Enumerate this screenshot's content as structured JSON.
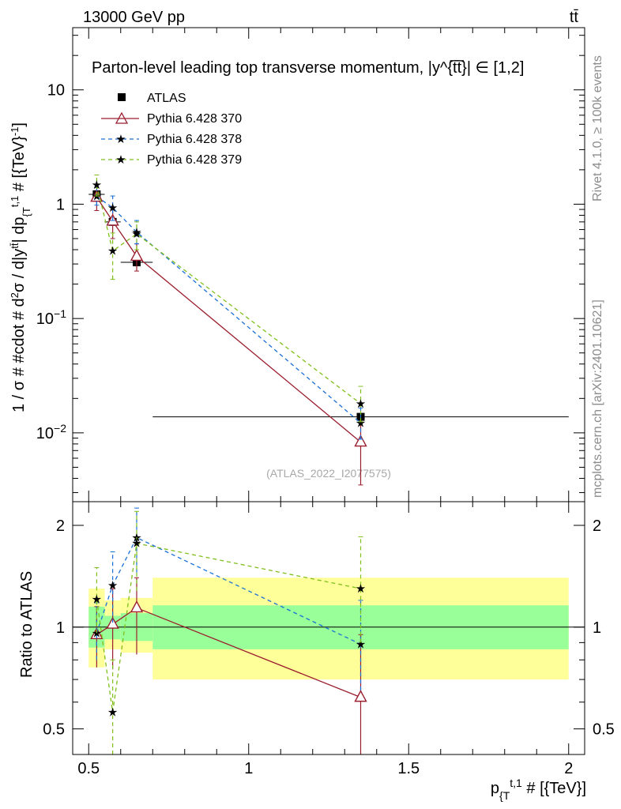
{
  "header": {
    "left": "13000 GeV pp",
    "right": "tt̄"
  },
  "side_labels": {
    "rivet": "Rivet 4.1.0, ≥ 100k events",
    "mcplots": "mcplots.cern.ch [arXiv:2401.10621]"
  },
  "chart_data": [
    {
      "name": "main",
      "type": "scatter",
      "title": "Parton-level leading top transverse momentum, |y^{tt̄}| ∈ [1,2]",
      "title_display": "Parton-level leading top transverse momentum, |y^{t̅t̅}| ∈ [1,2]",
      "watermark": "(ATLAS_2022_I2077575)",
      "ylabel": "1 / σ # #cdot # d²σ / d|y^{tt̄}| dp_{T}^{t,1} # [{TeV}⁻¹]",
      "ylabel_parts": {
        "a": "1 / σ # #cdot # d",
        "sup2": "2",
        "b": "σ / d|y",
        "supy": "tt̄",
        "c": "| dp",
        "subT": "{T",
        "supT": "t,1",
        "d": " # [{TeV}",
        "supinv": "-1",
        "e": "]"
      },
      "xlim": [
        0.45,
        2.05
      ],
      "ylim": [
        0.0025,
        35
      ],
      "yscale": "log",
      "y_ticks": [
        {
          "value": 0.01,
          "base": "10",
          "exp": "−2"
        },
        {
          "value": 0.1,
          "base": "10",
          "exp": "−1"
        },
        {
          "value": 1,
          "label": "1"
        },
        {
          "value": 10,
          "label": "10"
        }
      ],
      "legend": [
        "ATLAS",
        "Pythia 6.428 370",
        "Pythia 6.428 378",
        "Pythia 6.428 379"
      ],
      "series": [
        {
          "name": "ATLAS",
          "color": "#000000",
          "marker": "square",
          "x": [
            0.525,
            0.575,
            0.65,
            1.35
          ],
          "xerr": [
            0.025,
            0.025,
            0.05,
            0.65
          ],
          "y": [
            1.22,
            0.7,
            0.31,
            0.0138
          ]
        },
        {
          "name": "Pythia 6.428 370",
          "color": "#9a1e2e",
          "marker": "triangle",
          "dash": "",
          "x": [
            0.525,
            0.575,
            0.65,
            1.35
          ],
          "y": [
            1.15,
            0.71,
            0.35,
            0.0083
          ],
          "ylo": [
            0.88,
            0.5,
            0.26,
            0.0035
          ],
          "yhi": [
            1.4,
            0.9,
            0.45,
            0.0125
          ]
        },
        {
          "name": "Pythia 6.428 378",
          "color": "#1a6fd6",
          "marker": "star",
          "dash": "5,4",
          "x": [
            0.525,
            0.575,
            0.65,
            1.35
          ],
          "y": [
            1.17,
            0.93,
            0.57,
            0.0122
          ],
          "ylo": [
            0.98,
            0.72,
            0.45,
            0.0088
          ],
          "yhi": [
            1.4,
            1.18,
            0.72,
            0.0165
          ]
        },
        {
          "name": "Pythia 6.428 379",
          "color": "#7fbf1a",
          "marker": "star",
          "dash": "5,4",
          "x": [
            0.525,
            0.575,
            0.65,
            1.35
          ],
          "y": [
            1.48,
            0.39,
            0.55,
            0.018
          ],
          "ylo": [
            1.18,
            0.22,
            0.4,
            0.0125
          ],
          "yhi": [
            1.8,
            0.56,
            0.7,
            0.0255
          ]
        }
      ]
    },
    {
      "name": "ratio",
      "type": "scatter",
      "ylabel": "Ratio to ATLAS",
      "xlabel": "p_{T}^{t,1} # [{TeV}]",
      "xlabel_parts": {
        "p": "p",
        "sub": "{T",
        "sup": "t,1",
        "rest": " # [{TeV}]"
      },
      "xlim": [
        0.45,
        2.05
      ],
      "ylim": [
        0.42,
        2.35
      ],
      "yscale": "log",
      "x_ticks": [
        {
          "value": 0.5,
          "label": "0.5"
        },
        {
          "value": 1,
          "label": "1"
        },
        {
          "value": 1.5,
          "label": "1.5"
        },
        {
          "value": 2,
          "label": "2"
        }
      ],
      "y_ticks": [
        {
          "value": 0.5,
          "label": "0.5"
        },
        {
          "value": 1,
          "label": "1"
        },
        {
          "value": 2,
          "label": "2"
        }
      ],
      "bands": [
        {
          "x0": 0.5,
          "x1": 0.55,
          "yellow": [
            0.76,
            1.3
          ],
          "green": [
            0.87,
            1.15
          ]
        },
        {
          "x0": 0.55,
          "x1": 0.6,
          "yellow": [
            0.86,
            1.2
          ],
          "green": [
            0.92,
            1.08
          ]
        },
        {
          "x0": 0.6,
          "x1": 0.7,
          "yellow": [
            0.84,
            1.22
          ],
          "green": [
            0.91,
            1.1
          ]
        },
        {
          "x0": 0.7,
          "x1": 2.0,
          "yellow": [
            0.7,
            1.4
          ],
          "green": [
            0.86,
            1.16
          ]
        }
      ],
      "series": [
        {
          "name": "Pythia 6.428 370",
          "color": "#9a1e2e",
          "marker": "triangle",
          "dash": "",
          "x": [
            0.525,
            0.575,
            0.65,
            1.35
          ],
          "y": [
            0.95,
            1.02,
            1.14,
            0.62
          ],
          "ylo": [
            0.76,
            0.75,
            0.83,
            0.42
          ],
          "yhi": [
            1.15,
            1.3,
            1.4,
            0.95
          ]
        },
        {
          "name": "Pythia 6.428 378",
          "color": "#1a6fd6",
          "marker": "star",
          "dash": "5,4",
          "x": [
            0.525,
            0.575,
            0.65,
            1.35
          ],
          "y": [
            0.96,
            1.33,
            1.84,
            0.89
          ],
          "ylo": [
            0.8,
            1.03,
            1.45,
            0.65
          ],
          "yhi": [
            1.18,
            1.67,
            2.25,
            1.2
          ]
        },
        {
          "name": "Pythia 6.428 379",
          "color": "#7fbf1a",
          "marker": "star",
          "dash": "5,4",
          "x": [
            0.525,
            0.575,
            0.65,
            1.35
          ],
          "y": [
            1.21,
            0.56,
            1.77,
            1.3
          ],
          "ylo": [
            0.96,
            0.42,
            1.28,
            0.9
          ],
          "yhi": [
            1.5,
            0.8,
            2.2,
            1.85
          ]
        }
      ]
    }
  ]
}
